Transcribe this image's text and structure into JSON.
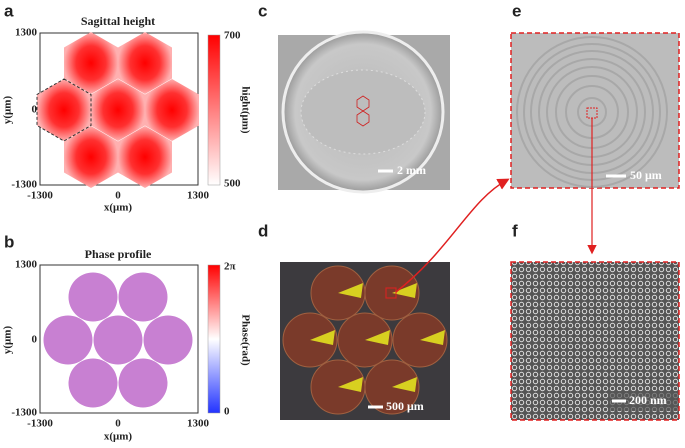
{
  "panels": [
    {
      "label": "a",
      "title": "Sagittal height",
      "xlabel": "x(μm)",
      "ylabel": "y(μm)",
      "xticks": [
        "-1300",
        "0",
        "1300"
      ],
      "yticks": [
        "1300",
        "0",
        "-1300"
      ],
      "colorbar_label": "hight(μm)",
      "colorbar_ticks": [
        "700",
        "500"
      ]
    },
    {
      "label": "b",
      "title": "Phase profile",
      "xlabel": "x(μm)",
      "ylabel": "y(μm)",
      "xticks": [
        "-1300",
        "0",
        "1300"
      ],
      "yticks": [
        "1300",
        "0",
        "-1300"
      ],
      "colorbar_label": "Phase(rad)",
      "colorbar_ticks": [
        "2π",
        "0"
      ]
    },
    {
      "label": "c",
      "scale_bar": "2 mm"
    },
    {
      "label": "d",
      "scale_bar": "500 μm"
    },
    {
      "label": "e",
      "scale_bar": "50 μm"
    },
    {
      "label": "f",
      "scale_bar": "200 nm"
    }
  ]
}
